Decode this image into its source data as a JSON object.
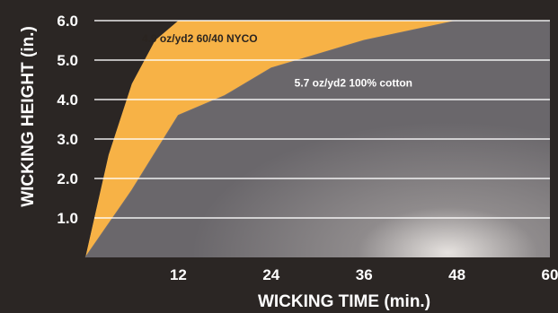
{
  "chart_data": {
    "type": "area",
    "title": "",
    "xlabel": "WICKING TIME (min.)",
    "ylabel": "WICKING HEIGHT (in.)",
    "xlim": [
      0,
      60
    ],
    "ylim": [
      0,
      6
    ],
    "x_ticks": [
      "12",
      "24",
      "36",
      "48",
      "60"
    ],
    "y_ticks": [
      "1.0",
      "2.0",
      "3.0",
      "4.0",
      "5.0",
      "6.0"
    ],
    "grid": true,
    "series": [
      {
        "name": "4.9 oz/yd2 60/40 NYCO",
        "color": "#f7b246",
        "x": [
          0,
          3,
          6,
          9,
          12
        ],
        "y": [
          0,
          2.6,
          4.4,
          5.5,
          6.0
        ]
      },
      {
        "name": "5.7 oz/yd2 100% cotton",
        "color": "#6f6c71",
        "x": [
          0,
          6,
          12,
          18,
          24,
          36,
          48
        ],
        "y": [
          0,
          1.7,
          3.6,
          4.1,
          4.8,
          5.5,
          6.0
        ]
      }
    ]
  }
}
